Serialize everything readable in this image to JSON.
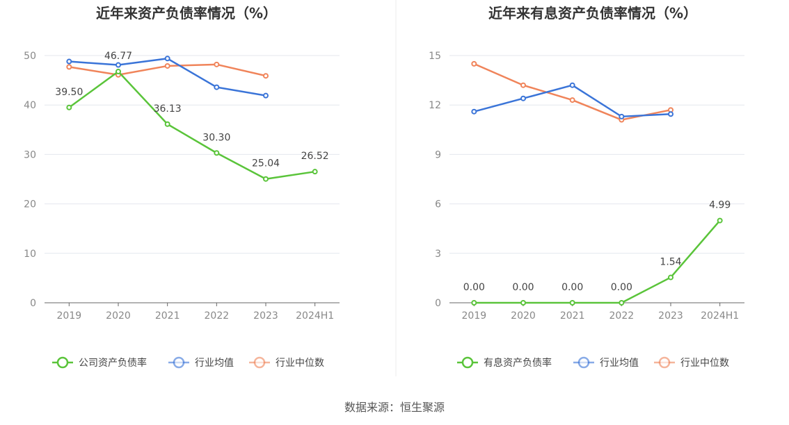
{
  "source": "数据来源：恒生聚源",
  "chart_data": [
    {
      "type": "line",
      "title": "近年来资产负债率情况（%）",
      "categories": [
        "2019",
        "2020",
        "2021",
        "2022",
        "2023",
        "2024H1"
      ],
      "ylim": [
        0,
        50
      ],
      "yticks": [
        0,
        10,
        20,
        30,
        40,
        50
      ],
      "ytick_labels": [
        "0",
        "10",
        "20",
        "30",
        "40",
        "50"
      ],
      "grid": true,
      "legend_position": "bottom",
      "series": [
        {
          "name": "公司资产负债率",
          "color": "#5ac43a",
          "values": [
            39.5,
            46.77,
            36.13,
            30.3,
            25.04,
            26.52
          ],
          "labels": [
            "39.50",
            "46.77",
            "36.13",
            "30.30",
            "25.04",
            "26.52"
          ]
        },
        {
          "name": "行业均值",
          "color": "#3a74d8",
          "values": [
            48.8,
            48.1,
            49.4,
            43.6,
            41.9,
            null
          ]
        },
        {
          "name": "行业中位数",
          "color": "#f0845a",
          "values": [
            47.7,
            46.1,
            47.9,
            48.2,
            45.9,
            null
          ]
        }
      ]
    },
    {
      "type": "line",
      "title": "近年来有息资产负债率情况（%）",
      "categories": [
        "2019",
        "2020",
        "2021",
        "2022",
        "2023",
        "2024H1"
      ],
      "ylim": [
        0,
        15
      ],
      "yticks": [
        0,
        3,
        6,
        9,
        12,
        15
      ],
      "ytick_labels": [
        "0",
        "3",
        "6",
        "9",
        "12",
        "15"
      ],
      "grid": true,
      "legend_position": "bottom",
      "series": [
        {
          "name": "有息资产负债率",
          "color": "#5ac43a",
          "values": [
            0.0,
            0.0,
            0.0,
            0.0,
            1.54,
            4.99
          ],
          "labels": [
            "0.00",
            "0.00",
            "0.00",
            "0.00",
            "1.54",
            "4.99"
          ]
        },
        {
          "name": "行业均值",
          "color": "#3a74d8",
          "values": [
            11.6,
            12.4,
            13.2,
            11.3,
            11.45,
            null
          ]
        },
        {
          "name": "行业中位数",
          "color": "#f0845a",
          "values": [
            14.5,
            13.2,
            12.3,
            11.1,
            11.7,
            null
          ]
        }
      ]
    }
  ]
}
